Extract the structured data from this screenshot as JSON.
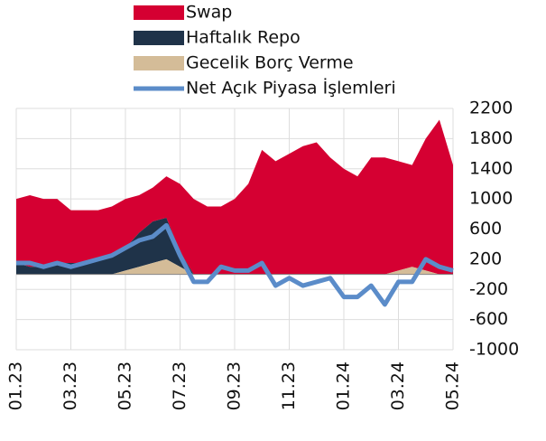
{
  "chart_data": {
    "type": "stacked-area-line",
    "categories": [
      "01.23",
      null,
      null,
      null,
      "03.23",
      null,
      null,
      null,
      "05.23",
      null,
      null,
      null,
      "07.23",
      null,
      null,
      null,
      "09.23",
      null,
      null,
      null,
      "11.23",
      null,
      null,
      null,
      "01.24",
      null,
      null,
      null,
      "03.24",
      null,
      null,
      null,
      "05.24"
    ],
    "series": [
      {
        "name": "Swap",
        "type": "area",
        "color": "#d50032",
        "values": [
          850,
          950,
          900,
          850,
          700,
          700,
          650,
          650,
          650,
          500,
          450,
          550,
          900,
          1000,
          900,
          900,
          1000,
          1200,
          1650,
          1500,
          1600,
          1700,
          1750,
          1550,
          1400,
          1300,
          1550,
          1550,
          1450,
          1350,
          1750,
          2050,
          1450
        ]
      },
      {
        "name": "Haftalık Repo",
        "type": "area",
        "color": "#1f3349",
        "values": [
          150,
          100,
          100,
          150,
          150,
          150,
          200,
          250,
          300,
          450,
          550,
          550,
          200,
          0,
          0,
          0,
          0,
          0,
          0,
          0,
          0,
          0,
          0,
          0,
          0,
          0,
          0,
          0,
          0,
          0,
          0,
          0,
          0
        ]
      },
      {
        "name": "Gecelik Borç Verme",
        "type": "area",
        "color": "#d4bc98",
        "values": [
          0,
          0,
          0,
          0,
          0,
          0,
          0,
          0,
          50,
          100,
          150,
          200,
          100,
          0,
          0,
          0,
          0,
          0,
          0,
          0,
          0,
          0,
          0,
          0,
          0,
          0,
          0,
          0,
          50,
          100,
          50,
          0,
          0
        ]
      },
      {
        "name": "Net Açık Piyasa İşlemleri",
        "type": "line",
        "color": "#5b8cc9",
        "values": [
          150,
          150,
          100,
          150,
          100,
          150,
          200,
          250,
          350,
          450,
          500,
          650,
          250,
          -100,
          -100,
          100,
          50,
          50,
          150,
          -150,
          -50,
          -150,
          -100,
          -50,
          -300,
          -300,
          -150,
          -400,
          -100,
          -100,
          200,
          100,
          50
        ]
      }
    ],
    "ylim": [
      -1000,
      2200
    ],
    "yticks": [
      -1000,
      -600,
      -200,
      200,
      600,
      1000,
      1400,
      1800,
      2200
    ],
    "grid": true
  }
}
